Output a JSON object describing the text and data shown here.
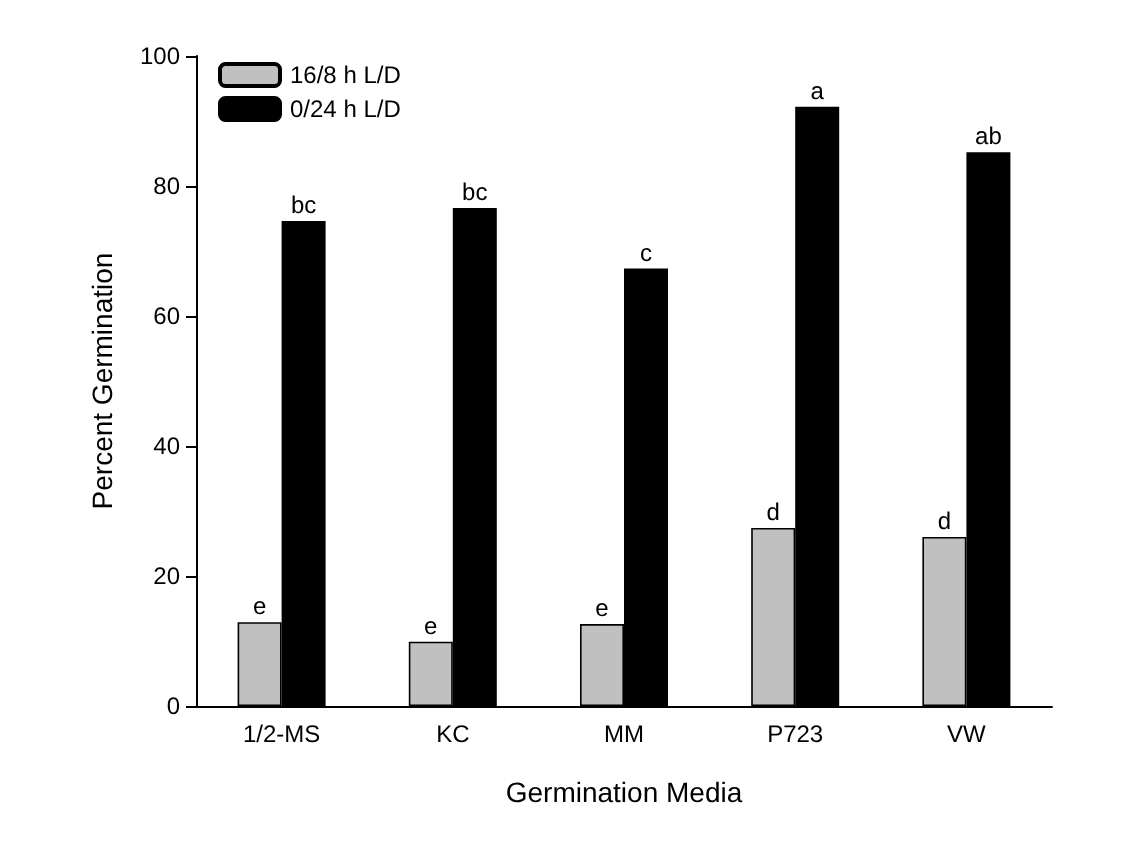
{
  "chart_data": {
    "type": "bar",
    "xlabel": "Germination Media",
    "ylabel": "Percent Germination",
    "categories": [
      "1/2-MS",
      "KC",
      "MM",
      "P723",
      "VW"
    ],
    "series": [
      {
        "name": "16/8 h L/D",
        "color": "#c0c0c0",
        "values": [
          12.9,
          9.9,
          12.6,
          27.4,
          26
        ],
        "value_labels": [
          "e",
          "e",
          "e",
          "d",
          "d"
        ]
      },
      {
        "name": "0/24 h L/D",
        "color": "#000000",
        "values": [
          74.6,
          76.6,
          67.3,
          92.2,
          85.2
        ],
        "value_labels": [
          "bc",
          "bc",
          "c",
          "a",
          "ab"
        ]
      }
    ],
    "ylim": [
      0,
      100
    ],
    "yticks": [
      0,
      20,
      40,
      60,
      80,
      100
    ],
    "grid": false,
    "legend": "top left"
  }
}
